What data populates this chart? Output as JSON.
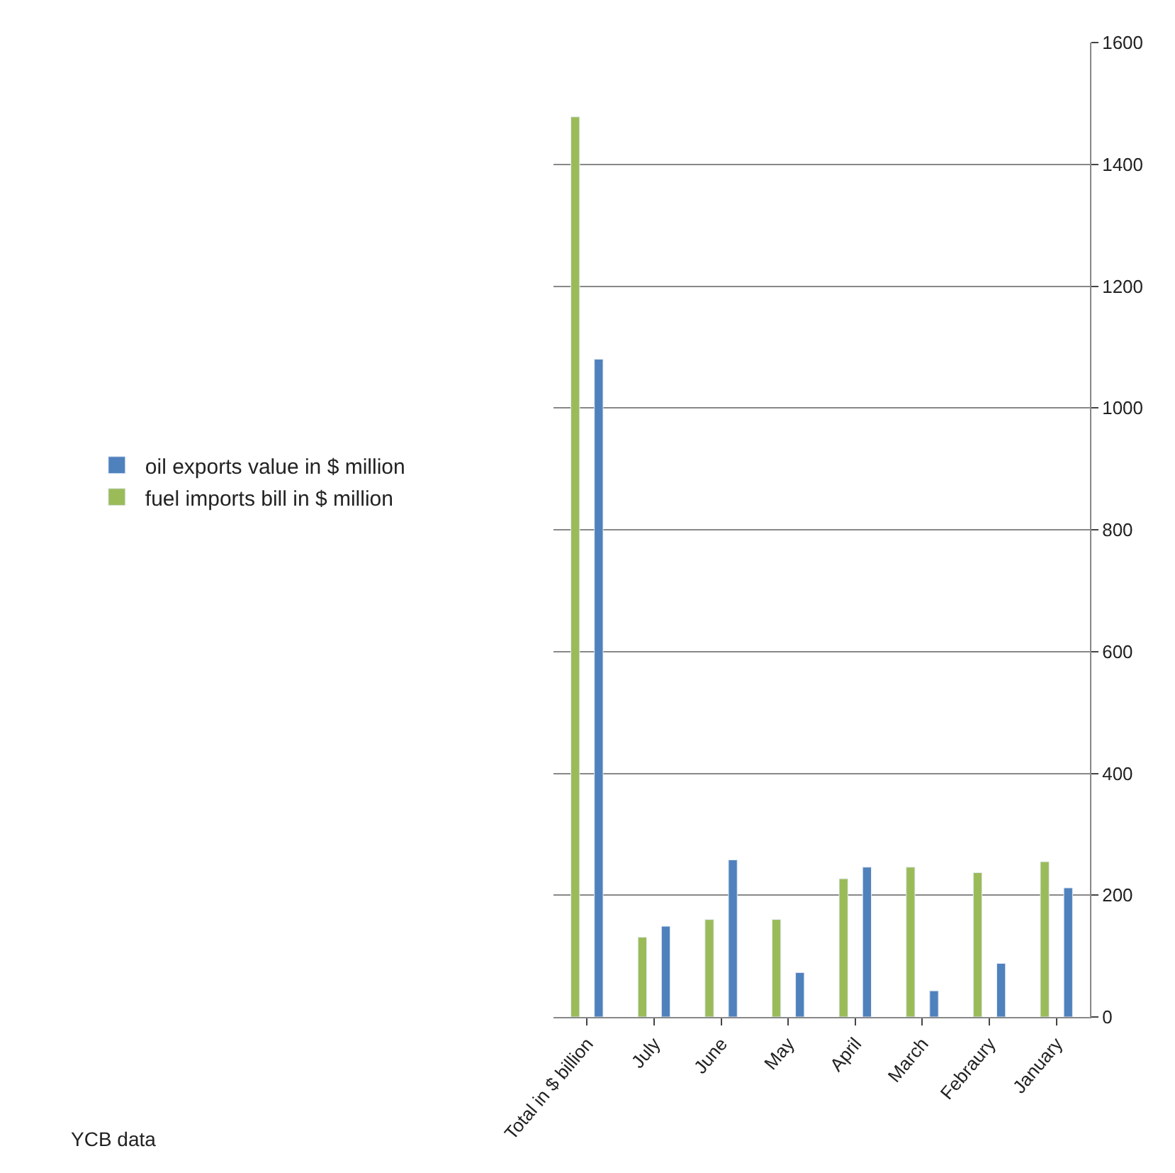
{
  "chart_data": {
    "type": "bar",
    "categories": [
      "Total in $ billion",
      "July",
      "June",
      "May",
      "April",
      "March",
      "Febraury",
      "January"
    ],
    "series": [
      {
        "name": "fuel imports bill in $ million",
        "color": "#9bbb59",
        "values": [
          1478,
          131,
          160,
          160,
          227,
          246,
          237,
          255
        ]
      },
      {
        "name": "oil exports value in $ million",
        "color": "#4f81bd",
        "values": [
          1080,
          149,
          258,
          73,
          246,
          43,
          88,
          212
        ]
      }
    ],
    "ylim": [
      0,
      1600
    ],
    "yticks": [
      0,
      200,
      400,
      600,
      800,
      1000,
      1200,
      1400,
      1600
    ],
    "grid": "y",
    "legend": "left",
    "annotations": [
      "YCB data"
    ]
  }
}
